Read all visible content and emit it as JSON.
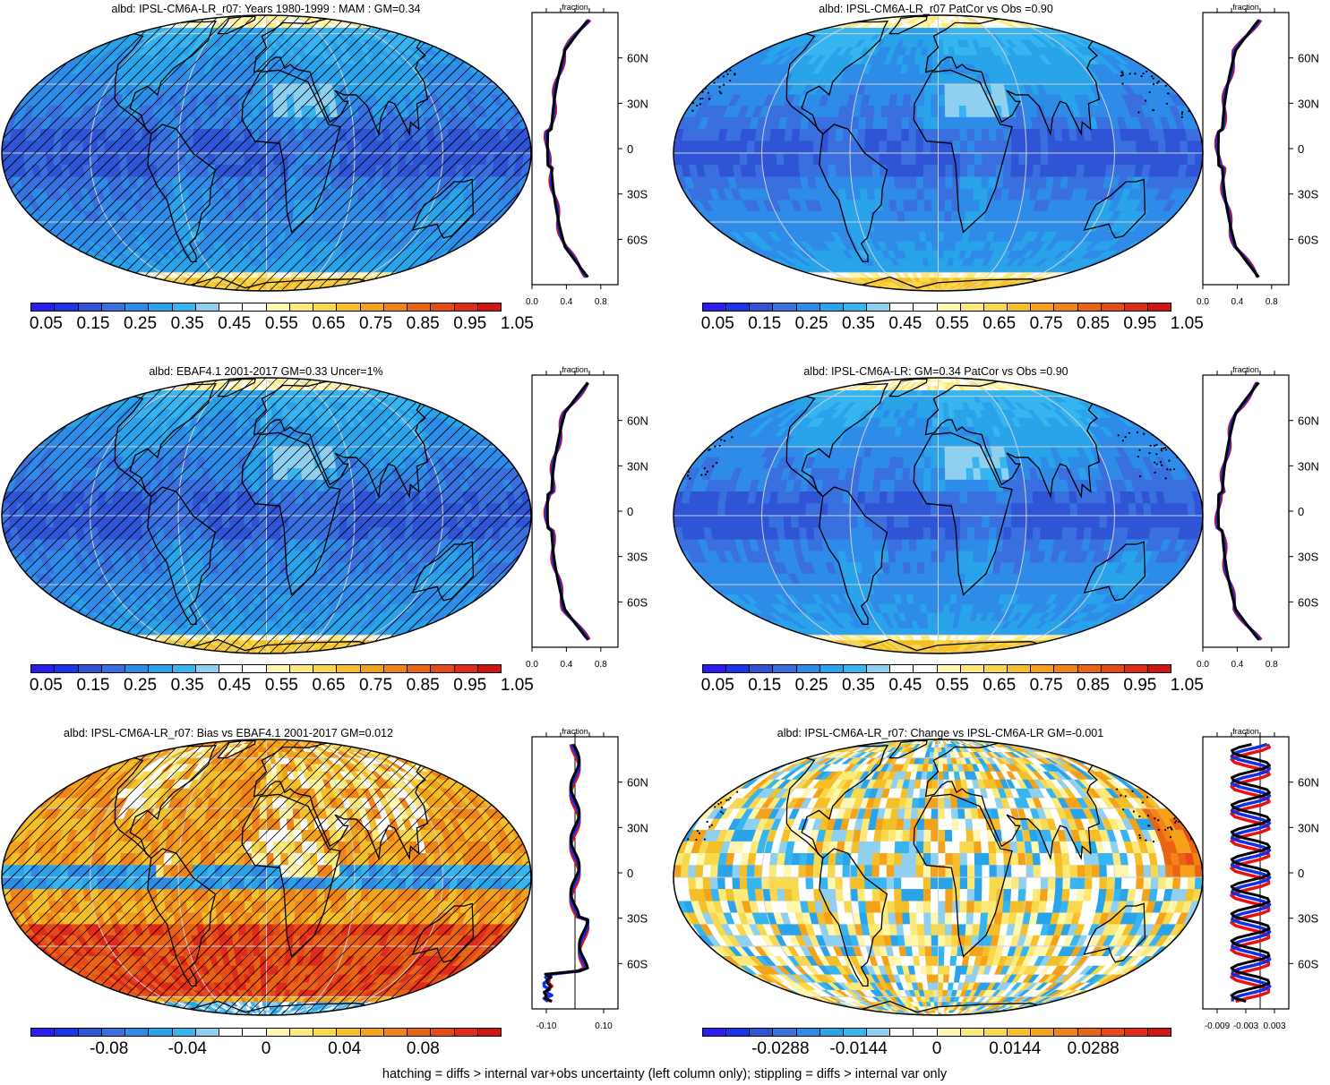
{
  "footnote": "hatching = diffs > internal var+obs uncertainty (left column only); stippling = diffs > internal var only",
  "colors": {
    "abs_palette": [
      "#2b1cf0",
      "#1b35e8",
      "#2f55d6",
      "#3a6fe0",
      "#2e8be8",
      "#29a3ea",
      "#36b5f0",
      "#8fcff0",
      "#ffffff",
      "#ffffff",
      "#fff7b0",
      "#fde97a",
      "#f8d84d",
      "#f5bf2a",
      "#f4a21a",
      "#f08418",
      "#ea6416",
      "#e84a17",
      "#e02a1a",
      "#d01515"
    ],
    "bias_palette": [
      "#2b1cf0",
      "#1b35e8",
      "#2f55d6",
      "#3a6fe0",
      "#2e8be8",
      "#29a3ea",
      "#36b5f0",
      "#8fcff0",
      "#ffffff",
      "#ffffff",
      "#fff7b0",
      "#fde97a",
      "#f8d84d",
      "#f5bf2a",
      "#f4a21a",
      "#f08418",
      "#ea6416",
      "#e84a17",
      "#e02a1a",
      "#d01515"
    ],
    "model_line": "#e81010",
    "model2_line": "#1030e8",
    "obs_line": "#000000"
  },
  "panels": [
    {
      "id": "p1",
      "title": "albd: IPSL-CM6A-LR_r07: Years 1980-1999 : MAM : GM=0.34",
      "kind": "abs",
      "hatched": true,
      "colorbar_labels": [
        "0.05",
        "0.15",
        "0.25",
        "0.35",
        "0.45",
        "0.55",
        "0.65",
        "0.75",
        "0.85",
        "0.95",
        "1.05"
      ],
      "profile": {
        "header": "fraction",
        "xticks": [
          "0.0",
          "0.4",
          "0.8"
        ],
        "xrange": [
          0,
          1
        ],
        "lat_labels": [
          "60N",
          "30N",
          "0",
          "30S",
          "60S"
        ]
      }
    },
    {
      "id": "p2",
      "title": "albd: IPSL-CM6A-LR_r07 PatCor vs Obs =0.90",
      "kind": "abs",
      "hatched": false,
      "colorbar_labels": [
        "0.05",
        "0.15",
        "0.25",
        "0.35",
        "0.45",
        "0.55",
        "0.65",
        "0.75",
        "0.85",
        "0.95",
        "1.05"
      ],
      "profile": {
        "header": "fraction",
        "xticks": [
          "0.0",
          "0.4",
          "0.8"
        ],
        "xrange": [
          0,
          1
        ],
        "lat_labels": [
          "60N",
          "30N",
          "0",
          "30S",
          "60S"
        ]
      }
    },
    {
      "id": "p3",
      "title": "albd: EBAF4.1 2001-2017 GM=0.33 Uncer=1%",
      "kind": "abs",
      "hatched": true,
      "colorbar_labels": [
        "0.05",
        "0.15",
        "0.25",
        "0.35",
        "0.45",
        "0.55",
        "0.65",
        "0.75",
        "0.85",
        "0.95",
        "1.05"
      ],
      "profile": {
        "header": "fraction",
        "xticks": [
          "0.0",
          "0.4",
          "0.8"
        ],
        "xrange": [
          0,
          1
        ],
        "lat_labels": [
          "60N",
          "30N",
          "0",
          "30S",
          "60S"
        ]
      }
    },
    {
      "id": "p4",
      "title": "albd: IPSL-CM6A-LR: GM=0.34 PatCor vs Obs =0.90",
      "kind": "abs",
      "hatched": false,
      "colorbar_labels": [
        "0.05",
        "0.15",
        "0.25",
        "0.35",
        "0.45",
        "0.55",
        "0.65",
        "0.75",
        "0.85",
        "0.95",
        "1.05"
      ],
      "profile": {
        "header": "fraction",
        "xticks": [
          "0.0",
          "0.4",
          "0.8"
        ],
        "xrange": [
          0,
          1
        ],
        "lat_labels": [
          "60N",
          "30N",
          "0",
          "30S",
          "60S"
        ]
      }
    },
    {
      "id": "p5",
      "title": "albd: IPSL-CM6A-LR_r07: Bias vs EBAF4.1 2001-2017 GM=0.012",
      "kind": "bias",
      "hatched": true,
      "colorbar_labels": [
        "-0.08",
        "-0.04",
        "0",
        "0.04",
        "0.08"
      ],
      "profile": {
        "header": "fraction",
        "xticks": [
          "-0.10",
          "0.10"
        ],
        "xrange": [
          -0.15,
          0.15
        ],
        "lat_labels": [
          "60N",
          "30N",
          "0",
          "30S",
          "60S"
        ]
      }
    },
    {
      "id": "p6",
      "title": "albd: IPSL-CM6A-LR_r07: Change vs IPSL-CM6A-LR GM=-0.001",
      "kind": "change",
      "hatched": false,
      "colorbar_labels": [
        "-0.0288",
        "-0.0144",
        "0",
        "0.0144",
        "0.0288"
      ],
      "profile": {
        "header": "fraction",
        "xticks": [
          "-0.009",
          "-0.003",
          "0.003"
        ],
        "xrange": [
          -0.012,
          0.006
        ],
        "lat_labels": [
          "60N",
          "30N",
          "0",
          "30S",
          "60S"
        ]
      }
    }
  ]
}
